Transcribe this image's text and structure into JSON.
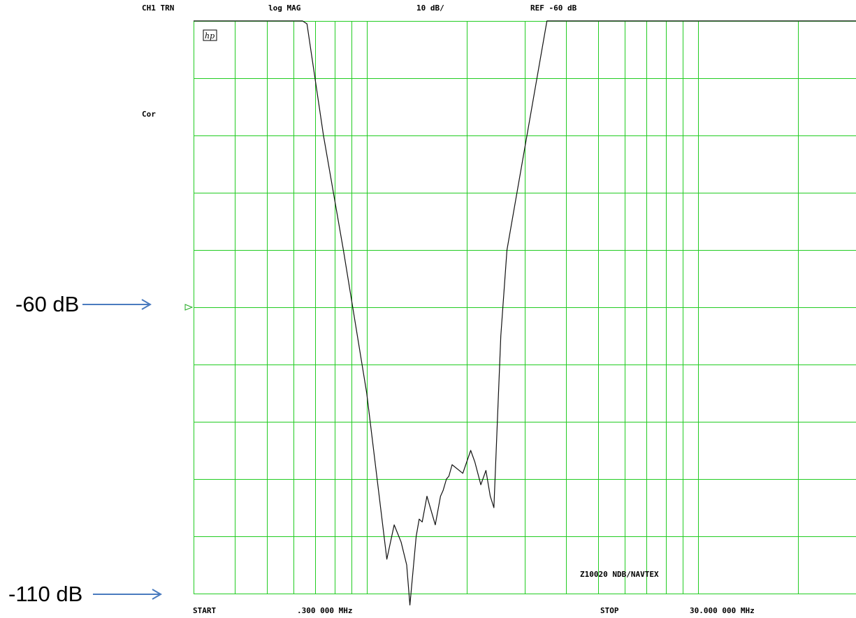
{
  "header": {
    "channel": "CH1 TRN",
    "format": "log MAG",
    "scale": "10 dB/",
    "reference": "REF -60 dB"
  },
  "side_labels": {
    "correction": "Cor"
  },
  "footer": {
    "start_label": "START",
    "start_value": ".300 000 MHz",
    "stop_label": "STOP",
    "stop_value": "30.000 000 MHz"
  },
  "annotations": {
    "ref_callout": "-60 dB",
    "bottom_callout": "-110 dB",
    "device_note": "Z10020 NDB/NAVTEX"
  },
  "logo": "hp",
  "colors": {
    "grid": "#22cc22",
    "trace": "#111111",
    "arrow": "#4a7bbf",
    "marker": "#22aa22"
  },
  "chart_data": {
    "type": "line",
    "title": "",
    "xlabel": "",
    "ylabel": "",
    "x_scale": "log",
    "xlim": [
      0.3,
      30
    ],
    "ylim": [
      -110,
      -10
    ],
    "y_reference": -60,
    "grid": true,
    "series": [
      {
        "x": [
          0.3,
          0.64,
          0.66,
          0.74,
          0.85,
          1.0,
          1.15,
          1.21,
          1.27,
          1.32,
          1.35,
          1.41,
          1.44,
          1.47,
          1.52,
          1.61,
          1.67,
          1.7,
          1.74,
          1.77,
          1.81,
          1.95,
          2.06,
          2.12,
          2.21,
          2.29,
          2.36,
          2.42,
          2.54,
          2.65,
          3.5,
          4.0,
          4.03,
          30.0
        ],
        "y": [
          -10,
          -10,
          -10.5,
          -30,
          -50,
          -75,
          -104,
          -98,
          -101,
          -105,
          -112,
          -100,
          -97,
          -97.5,
          -93,
          -98,
          -93,
          -92,
          -90,
          -89.5,
          -87.5,
          -89,
          -85,
          -87,
          -91,
          -88.5,
          -93,
          -95,
          -65,
          -50,
          -10,
          -10,
          -10,
          -10
        ]
      }
    ]
  }
}
